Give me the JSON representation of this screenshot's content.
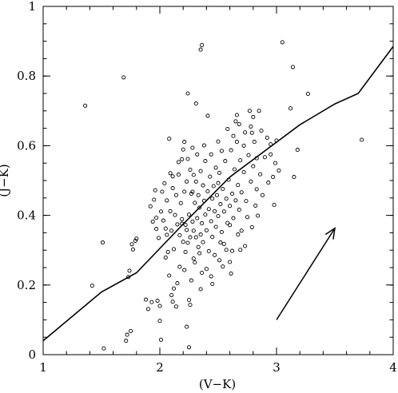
{
  "chart_data": {
    "type": "scatter",
    "title": "",
    "xlabel": "(V−K)",
    "ylabel": "(J−K)",
    "xlim": [
      1,
      4
    ],
    "ylim": [
      0,
      1
    ],
    "x_ticks": [
      1,
      2,
      3,
      4
    ],
    "y_ticks": [
      0,
      0.2,
      0.4,
      0.6,
      0.8,
      1
    ],
    "x_tick_labels": [
      "1",
      "2",
      "3",
      "4"
    ],
    "y_tick_labels": [
      "0",
      "0.2",
      "0.4",
      "0.6",
      "0.8",
      "1"
    ],
    "grid": false,
    "legend": "none",
    "series": [
      {
        "kind": "points",
        "marker": "open-circle",
        "points": [
          [
            1.36,
            0.715
          ],
          [
            1.42,
            0.198
          ],
          [
            1.51,
            0.322
          ],
          [
            1.52,
            0.018
          ],
          [
            1.69,
            0.796
          ],
          [
            1.71,
            0.04
          ],
          [
            1.72,
            0.057
          ],
          [
            1.73,
            0.223
          ],
          [
            1.74,
            0.241
          ],
          [
            1.75,
            0.068
          ],
          [
            1.76,
            0.317
          ],
          [
            1.77,
            0.302
          ],
          [
            1.79,
            0.327
          ],
          [
            1.8,
            0.333
          ],
          [
            1.88,
            0.158
          ],
          [
            1.9,
            0.131
          ],
          [
            1.93,
            0.151
          ],
          [
            1.95,
            0.445
          ],
          [
            1.96,
            0.472
          ],
          [
            1.97,
            0.393
          ],
          [
            1.98,
            0.155
          ],
          [
            2.0,
            0.14
          ],
          [
            2.0,
            0.097
          ],
          [
            2.01,
            0.043
          ],
          [
            2.08,
            0.62
          ],
          [
            2.11,
            0.152
          ],
          [
            2.14,
            0.138
          ],
          [
            2.19,
            0.376
          ],
          [
            2.19,
            0.561
          ],
          [
            2.21,
            0.611
          ],
          [
            2.23,
            0.08
          ],
          [
            2.24,
            0.75
          ],
          [
            2.25,
            0.157
          ],
          [
            2.25,
            0.021
          ],
          [
            2.28,
            0.468
          ],
          [
            2.31,
            0.721
          ],
          [
            2.35,
            0.876
          ],
          [
            2.36,
            0.889
          ],
          [
            2.41,
            0.686
          ],
          [
            2.5,
            0.493
          ],
          [
            2.52,
            0.322
          ],
          [
            2.6,
            0.266
          ],
          [
            2.65,
            0.67
          ],
          [
            2.66,
            0.688
          ],
          [
            2.72,
            0.6
          ],
          [
            2.77,
            0.7
          ],
          [
            2.78,
            0.655
          ],
          [
            2.79,
            0.637
          ],
          [
            2.8,
            0.682
          ],
          [
            2.83,
            0.564
          ],
          [
            2.85,
            0.7
          ],
          [
            2.95,
            0.604
          ],
          [
            2.97,
            0.51
          ],
          [
            2.98,
            0.43
          ],
          [
            3.0,
            0.615
          ],
          [
            3.05,
            0.897
          ],
          [
            3.12,
            0.707
          ],
          [
            3.14,
            0.826
          ],
          [
            3.15,
            0.51
          ],
          [
            3.18,
            0.588
          ],
          [
            3.27,
            0.749
          ],
          [
            3.73,
            0.617
          ],
          [
            2.03,
            0.385
          ],
          [
            2.05,
            0.362
          ],
          [
            2.06,
            0.344
          ],
          [
            2.07,
            0.295
          ],
          [
            2.09,
            0.412
          ],
          [
            2.1,
            0.356
          ],
          [
            2.11,
            0.512
          ],
          [
            2.12,
            0.303
          ],
          [
            2.13,
            0.401
          ],
          [
            2.14,
            0.458
          ],
          [
            2.15,
            0.374
          ],
          [
            2.16,
            0.517
          ],
          [
            2.17,
            0.343
          ],
          [
            2.18,
            0.435
          ],
          [
            2.19,
            0.389
          ],
          [
            2.2,
            0.324
          ],
          [
            2.21,
            0.468
          ],
          [
            2.22,
            0.373
          ],
          [
            2.23,
            0.497
          ],
          [
            2.23,
            0.358
          ],
          [
            2.24,
            0.321
          ],
          [
            2.25,
            0.402
          ],
          [
            2.26,
            0.531
          ],
          [
            2.26,
            0.337
          ],
          [
            2.27,
            0.462
          ],
          [
            2.28,
            0.382
          ],
          [
            2.29,
            0.516
          ],
          [
            2.29,
            0.356
          ],
          [
            2.3,
            0.436
          ],
          [
            2.31,
            0.337
          ],
          [
            2.31,
            0.497
          ],
          [
            2.32,
            0.392
          ],
          [
            2.33,
            0.309
          ],
          [
            2.33,
            0.458
          ],
          [
            2.34,
            0.422
          ],
          [
            2.35,
            0.527
          ],
          [
            2.35,
            0.345
          ],
          [
            2.36,
            0.377
          ],
          [
            2.37,
            0.486
          ],
          [
            2.37,
            0.323
          ],
          [
            2.38,
            0.442
          ],
          [
            2.39,
            0.402
          ],
          [
            2.39,
            0.556
          ],
          [
            2.4,
            0.357
          ],
          [
            2.41,
            0.469
          ],
          [
            2.42,
            0.418
          ],
          [
            2.42,
            0.297
          ],
          [
            2.43,
            0.511
          ],
          [
            2.44,
            0.383
          ],
          [
            2.45,
            0.448
          ],
          [
            2.45,
            0.338
          ],
          [
            2.46,
            0.484
          ],
          [
            2.47,
            0.412
          ],
          [
            2.48,
            0.537
          ],
          [
            2.48,
            0.367
          ],
          [
            2.49,
            0.458
          ],
          [
            2.5,
            0.398
          ],
          [
            2.51,
            0.522
          ],
          [
            2.52,
            0.432
          ],
          [
            2.53,
            0.352
          ],
          [
            2.54,
            0.476
          ],
          [
            2.55,
            0.411
          ],
          [
            2.56,
            0.556
          ],
          [
            2.57,
            0.448
          ],
          [
            2.58,
            0.378
          ],
          [
            2.59,
            0.502
          ],
          [
            2.6,
            0.427
          ],
          [
            2.61,
            0.587
          ],
          [
            2.62,
            0.462
          ],
          [
            2.63,
            0.392
          ],
          [
            2.64,
            0.532
          ],
          [
            2.65,
            0.443
          ],
          [
            2.66,
            0.611
          ],
          [
            2.67,
            0.487
          ],
          [
            2.68,
            0.416
          ],
          [
            2.69,
            0.558
          ],
          [
            2.7,
            0.466
          ],
          [
            2.72,
            0.524
          ],
          [
            2.74,
            0.441
          ],
          [
            2.76,
            0.573
          ],
          [
            2.78,
            0.497
          ],
          [
            2.8,
            0.541
          ],
          [
            2.83,
            0.475
          ],
          [
            2.86,
            0.518
          ],
          [
            2.9,
            0.567
          ],
          [
            2.05,
            0.279
          ],
          [
            2.08,
            0.227
          ],
          [
            2.12,
            0.19
          ],
          [
            2.17,
            0.252
          ],
          [
            2.22,
            0.295
          ],
          [
            2.27,
            0.213
          ],
          [
            2.3,
            0.265
          ],
          [
            2.34,
            0.291
          ],
          [
            2.4,
            0.246
          ],
          [
            2.47,
            0.286
          ],
          [
            2.55,
            0.318
          ],
          [
            2.62,
            0.298
          ],
          [
            2.7,
            0.356
          ],
          [
            2.75,
            0.395
          ],
          [
            2.82,
            0.428
          ],
          [
            1.92,
            0.426
          ],
          [
            1.94,
            0.382
          ],
          [
            1.97,
            0.361
          ],
          [
            1.99,
            0.335
          ],
          [
            2.01,
            0.411
          ],
          [
            2.02,
            0.468
          ],
          [
            2.04,
            0.492
          ],
          [
            2.06,
            0.443
          ],
          [
            2.09,
            0.521
          ],
          [
            2.11,
            0.478
          ],
          [
            2.16,
            0.553
          ],
          [
            2.2,
            0.589
          ],
          [
            2.24,
            0.562
          ],
          [
            2.28,
            0.594
          ],
          [
            2.32,
            0.575
          ],
          [
            2.38,
            0.601
          ],
          [
            2.44,
            0.575
          ],
          [
            2.5,
            0.612
          ],
          [
            2.53,
            0.585
          ],
          [
            2.58,
            0.648
          ],
          [
            2.63,
            0.628
          ],
          [
            2.68,
            0.662
          ],
          [
            2.73,
            0.638
          ],
          [
            2.81,
            0.611
          ],
          [
            2.87,
            0.643
          ],
          [
            2.92,
            0.623
          ],
          [
            2.95,
            0.575
          ],
          [
            2.99,
            0.55
          ],
          [
            3.02,
            0.529
          ],
          [
            2.93,
            0.494
          ],
          [
            2.88,
            0.458
          ],
          [
            2.84,
            0.399
          ],
          [
            2.79,
            0.366
          ],
          [
            2.73,
            0.312
          ],
          [
            2.67,
            0.345
          ],
          [
            2.6,
            0.372
          ],
          [
            2.57,
            0.301
          ],
          [
            2.51,
            0.271
          ],
          [
            2.44,
            0.225
          ],
          [
            2.36,
            0.235
          ],
          [
            2.29,
            0.276
          ],
          [
            2.21,
            0.243
          ],
          [
            2.15,
            0.205
          ],
          [
            2.1,
            0.171
          ],
          [
            2.26,
            0.143
          ],
          [
            2.35,
            0.188
          ],
          [
            2.45,
            0.203
          ],
          [
            2.54,
            0.253
          ],
          [
            2.61,
            0.233
          ],
          [
            2.69,
            0.301
          ]
        ]
      },
      {
        "kind": "line",
        "points": [
          [
            1.0,
            0.04
          ],
          [
            1.5,
            0.18
          ],
          [
            1.8,
            0.235
          ],
          [
            2.2,
            0.375
          ],
          [
            2.6,
            0.51
          ],
          [
            3.0,
            0.61
          ],
          [
            3.2,
            0.66
          ],
          [
            3.5,
            0.72
          ],
          [
            3.7,
            0.75
          ],
          [
            4.0,
            0.885
          ]
        ]
      },
      {
        "kind": "arrow",
        "points": [
          [
            3.0,
            0.1
          ],
          [
            3.5,
            0.363
          ]
        ]
      }
    ]
  }
}
